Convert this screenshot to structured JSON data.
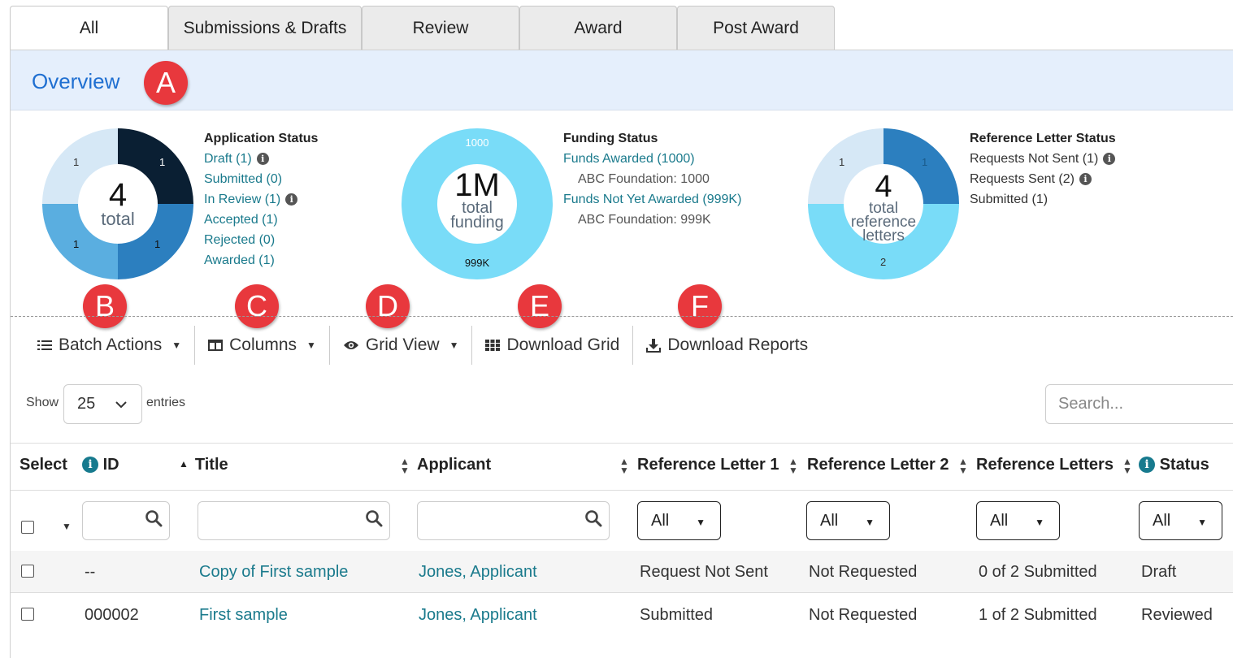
{
  "tabs": [
    "All",
    "Submissions & Drafts",
    "Review",
    "Award",
    "Post Award"
  ],
  "overview": {
    "title": "Overview"
  },
  "callouts": [
    "A",
    "B",
    "C",
    "D",
    "E",
    "F"
  ],
  "application_status": {
    "center_number": "4",
    "center_label": "total",
    "segment_labels": [
      "1",
      "1",
      "1",
      "1"
    ],
    "heading": "Application Status",
    "items": [
      "Draft (1)",
      "Submitted (0)",
      "In Review (1)",
      "Accepted (1)",
      "Rejected (0)",
      "Awarded (1)"
    ]
  },
  "funding_status": {
    "center_number": "1M",
    "center_label_1": "total",
    "center_label_2": "funding",
    "top_label": "1000",
    "bottom_label": "999K",
    "heading": "Funding Status",
    "awarded": "Funds Awarded (1000)",
    "awarded_detail": "ABC Foundation: 1000",
    "not_awarded": "Funds Not Yet Awarded (999K)",
    "not_awarded_detail": "ABC Foundation: 999K"
  },
  "reference_status": {
    "center_number": "4",
    "center_label_1": "total",
    "center_label_2": "reference",
    "center_label_3": "letters",
    "segment_labels": [
      "1",
      "1",
      "2"
    ],
    "heading": "Reference Letter Status",
    "items": [
      "Requests Not Sent (1)",
      "Requests Sent (2)",
      "Submitted (1)"
    ]
  },
  "toolbar": {
    "batch_actions": "Batch Actions",
    "columns": "Columns",
    "grid_view": "Grid View",
    "download_grid": "Download Grid",
    "download_reports": "Download Reports"
  },
  "entries": {
    "show": "Show",
    "value": "25",
    "suffix": "entries"
  },
  "search": {
    "placeholder": "Search..."
  },
  "table": {
    "headers": {
      "select": "Select",
      "id": "ID",
      "title": "Title",
      "applicant": "Applicant",
      "ref1": "Reference Letter 1",
      "ref2": "Reference Letter 2",
      "refs": "Reference Letters",
      "status": "Status"
    },
    "filter_all": "All",
    "rows": [
      {
        "id": "--",
        "title": "Copy of First sample",
        "applicant": "Jones, Applicant",
        "ref1": "Request Not Sent",
        "ref2": "Not Requested",
        "refs": "0 of 2 Submitted",
        "status": "Draft"
      },
      {
        "id": "000002",
        "title": "First sample",
        "applicant": "Jones, Applicant",
        "ref1": "Submitted",
        "ref2": "Not Requested",
        "refs": "1 of 2 Submitted",
        "status": "Reviewed"
      }
    ]
  },
  "colors": {
    "accent": "#1f6fd1",
    "link": "#1a7a8c",
    "donut_dark": "#0a1f33",
    "donut_mid": "#2c7fbf",
    "donut_light": "#5aaee0",
    "donut_pale": "#d6e8f6",
    "donut_cyan": "#79dcf8",
    "callout": "#e8383d"
  }
}
